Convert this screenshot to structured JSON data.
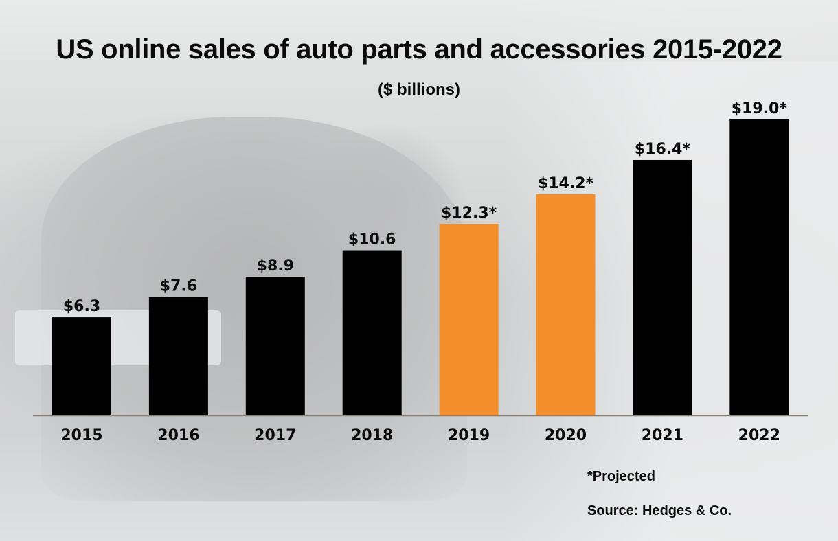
{
  "chart_data": {
    "type": "bar",
    "title": "US online sales of auto parts and accessories 2015-2022",
    "subtitle": "($ billions)",
    "xlabel": "",
    "ylabel": "",
    "categories": [
      "2015",
      "2016",
      "2017",
      "2018",
      "2019",
      "2020",
      "2021",
      "2022"
    ],
    "values": [
      6.3,
      7.6,
      8.9,
      10.6,
      12.3,
      14.2,
      16.4,
      19.0
    ],
    "value_labels": [
      "$6.3",
      "$7.6",
      "$8.9",
      "$10.6",
      "$12.3*",
      "$14.2*",
      "$16.4*",
      "$19.0*"
    ],
    "projected": [
      false,
      false,
      false,
      false,
      true,
      true,
      true,
      true
    ],
    "highlighted": [
      false,
      false,
      false,
      false,
      true,
      true,
      false,
      false
    ],
    "ylim": [
      0,
      19.0
    ],
    "grid": false,
    "legend": "none",
    "colors": {
      "default": "#000000",
      "highlight": "#f28e2b",
      "axis": "#8a8070"
    }
  },
  "notes": {
    "projected": "*Projected",
    "source": "Source: Hedges & Co."
  }
}
